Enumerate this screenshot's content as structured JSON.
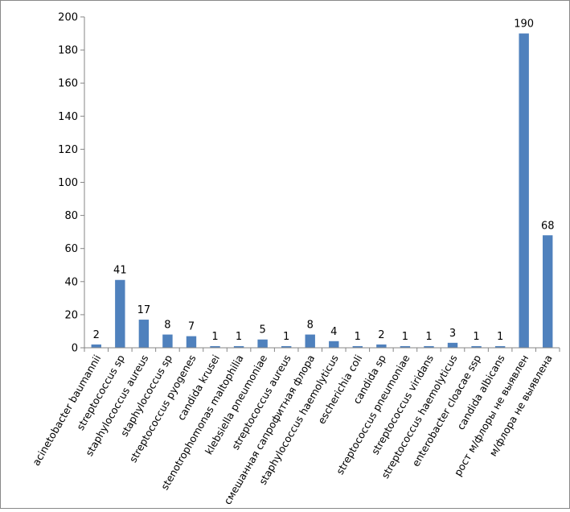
{
  "chart_data": {
    "type": "bar",
    "title": "",
    "xlabel": "",
    "ylabel": "",
    "ylim": [
      0,
      200
    ],
    "yticks": [
      0,
      20,
      40,
      60,
      80,
      100,
      120,
      140,
      160,
      180,
      200
    ],
    "grid": false,
    "legend": "none",
    "bar_color": "#4F81BD",
    "categories": [
      "acinetobacter baumannii",
      "streptococcus sp",
      "staphylococcus aureus",
      "staphylococcus sp",
      "streptococcus pyogenes",
      "candida krusei",
      "stenotrophomonas maltophilia",
      "klebsiella pneumoniae",
      "streptococcus aureus",
      "смешанная сапрофитная флора",
      "staphylococcus haemolyticus",
      "escherichia coli",
      "candida sp",
      "streptococcus pneumoniae",
      "streptococcus viridans",
      "streptococcus haemolyticus",
      "enterobacter cloacae ssp",
      "candida albicans",
      "рост м/флоры не выявлен",
      "м/флора не выявлена"
    ],
    "values": [
      2,
      41,
      17,
      8,
      7,
      1,
      1,
      5,
      1,
      8,
      4,
      1,
      2,
      1,
      1,
      3,
      1,
      1,
      190,
      68
    ]
  }
}
